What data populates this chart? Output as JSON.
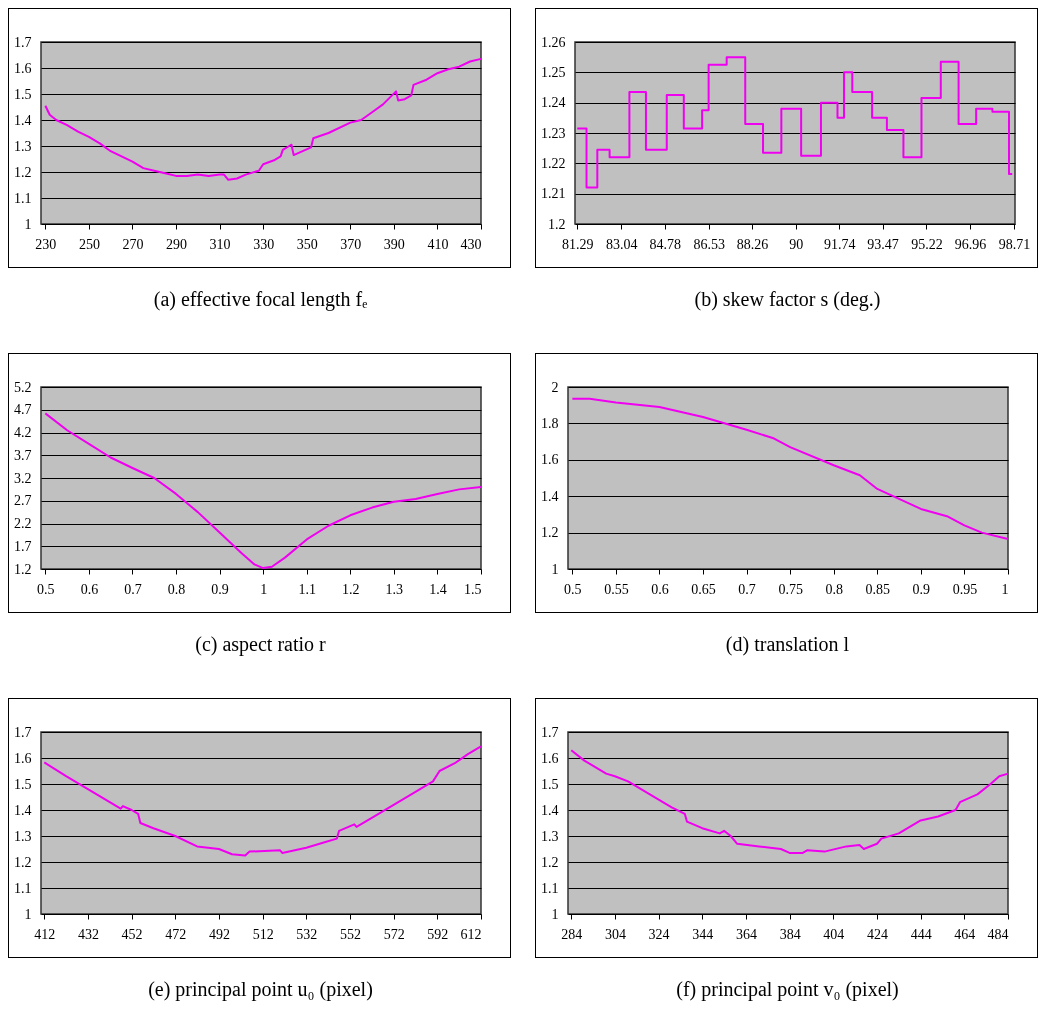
{
  "chart_data": [
    {
      "type": "line",
      "title": "(a)  effective focal length fₑ",
      "color": "#f000f0",
      "grid": "y",
      "xlim": [
        228,
        430
      ],
      "xticks": [
        230,
        250,
        270,
        290,
        310,
        330,
        350,
        370,
        390,
        410,
        430
      ],
      "ylim": [
        1,
        1.7
      ],
      "yticks": [
        1,
        1.1,
        1.2,
        1.3,
        1.4,
        1.5,
        1.6,
        1.7
      ],
      "x": [
        230,
        232,
        235,
        240,
        245,
        250,
        255,
        260,
        265,
        270,
        275,
        280,
        285,
        290,
        295,
        300,
        305,
        310,
        312,
        314,
        318,
        322,
        328,
        330,
        335,
        338,
        339,
        342,
        343,
        344,
        352,
        353,
        360,
        370,
        375,
        380,
        385,
        391,
        392,
        395,
        398,
        399,
        405,
        410,
        415,
        420,
        425,
        430
      ],
      "values": [
        1.455,
        1.42,
        1.4,
        1.38,
        1.355,
        1.335,
        1.31,
        1.28,
        1.26,
        1.24,
        1.215,
        1.205,
        1.195,
        1.185,
        1.185,
        1.19,
        1.185,
        1.19,
        1.19,
        1.17,
        1.175,
        1.19,
        1.205,
        1.23,
        1.245,
        1.26,
        1.285,
        1.3,
        1.305,
        1.265,
        1.295,
        1.33,
        1.35,
        1.39,
        1.4,
        1.43,
        1.46,
        1.51,
        1.475,
        1.48,
        1.495,
        1.535,
        1.555,
        1.58,
        1.595,
        1.605,
        1.625,
        1.635
      ]
    },
    {
      "type": "step",
      "title": "(b)  skew factor s (deg.)",
      "color": "#f000f0",
      "grid": "y",
      "xlim": [
        81.2,
        98.75
      ],
      "xticks": [
        81.29,
        83.04,
        84.78,
        86.53,
        88.26,
        90,
        91.74,
        93.47,
        95.22,
        96.96,
        98.71
      ],
      "ylim": [
        1.2,
        1.26
      ],
      "yticks": [
        1.2,
        1.21,
        1.22,
        1.23,
        1.24,
        1.25,
        1.26
      ],
      "x": [
        81.29,
        81.66,
        82.09,
        82.58,
        83.37,
        84.03,
        84.86,
        85.54,
        86.27,
        86.53,
        87.25,
        87.99,
        88.7,
        89.43,
        90.22,
        91.01,
        91.67,
        91.93,
        92.26,
        93.05,
        93.64,
        94.3,
        95.02,
        95.79,
        96.5,
        97.2,
        97.85,
        98.51,
        98.64
      ],
      "values": [
        1.2315,
        1.212,
        1.2245,
        1.222,
        1.2435,
        1.2245,
        1.2425,
        1.2315,
        1.2375,
        1.2525,
        1.255,
        1.233,
        1.2235,
        1.238,
        1.2225,
        1.24,
        1.235,
        1.25,
        1.2435,
        1.235,
        1.231,
        1.222,
        1.2415,
        1.2535,
        1.233,
        1.238,
        1.237,
        1.2165,
        1.2165
      ]
    },
    {
      "type": "line",
      "title": "(c)  aspect ratio r",
      "color": "#f000f0",
      "grid": "y",
      "xlim": [
        0.49,
        1.5
      ],
      "xticks": [
        0.5,
        0.6,
        0.7,
        0.8,
        0.9,
        1,
        1.1,
        1.2,
        1.3,
        1.4,
        1.5
      ],
      "ylim": [
        1.2,
        5.2
      ],
      "yticks": [
        1.2,
        1.7,
        2.2,
        2.7,
        3.2,
        3.7,
        4.2,
        4.7,
        5.2
      ],
      "x": [
        0.5,
        0.55,
        0.6,
        0.65,
        0.7,
        0.75,
        0.8,
        0.85,
        0.9,
        0.95,
        0.98,
        1.0,
        1.02,
        1.05,
        1.1,
        1.15,
        1.2,
        1.25,
        1.3,
        1.35,
        1.4,
        1.45,
        1.5
      ],
      "values": [
        4.62,
        4.25,
        3.95,
        3.65,
        3.42,
        3.2,
        2.85,
        2.45,
        2.0,
        1.55,
        1.3,
        1.22,
        1.25,
        1.45,
        1.85,
        2.15,
        2.38,
        2.55,
        2.68,
        2.74,
        2.85,
        2.95,
        3.0
      ]
    },
    {
      "type": "line",
      "title": "(d)  translation l",
      "color": "#f000f0",
      "grid": "y",
      "xlim": [
        0.495,
        1
      ],
      "xticks": [
        0.5,
        0.55,
        0.6,
        0.65,
        0.7,
        0.75,
        0.8,
        0.85,
        0.9,
        0.95,
        1
      ],
      "ylim": [
        1,
        2
      ],
      "yticks": [
        1,
        1.2,
        1.4,
        1.6,
        1.8,
        2
      ],
      "x": [
        0.5,
        0.52,
        0.55,
        0.6,
        0.65,
        0.7,
        0.73,
        0.75,
        0.8,
        0.83,
        0.85,
        0.9,
        0.93,
        0.95,
        0.97,
        1.0
      ],
      "values": [
        1.935,
        1.935,
        1.915,
        1.89,
        1.835,
        1.765,
        1.72,
        1.67,
        1.57,
        1.515,
        1.44,
        1.33,
        1.29,
        1.24,
        1.2,
        1.165
      ]
    },
    {
      "type": "line",
      "title": "(e)  principal point u₀ (pixel)",
      "color": "#f000f0",
      "grid": "y",
      "xlim": [
        410.5,
        612
      ],
      "xticks": [
        412,
        432,
        452,
        472,
        492,
        512,
        532,
        552,
        572,
        592,
        612
      ],
      "ylim": [
        1,
        1.7
      ],
      "yticks": [
        1,
        1.1,
        1.2,
        1.3,
        1.4,
        1.5,
        1.6,
        1.7
      ],
      "x": [
        412,
        422,
        432,
        442,
        447,
        448,
        452,
        455,
        456,
        462,
        472,
        482,
        492,
        498,
        504,
        506,
        520,
        521,
        532,
        540,
        546,
        547,
        554,
        555,
        562,
        572,
        582,
        590,
        593,
        600,
        606,
        612
      ],
      "values": [
        1.583,
        1.53,
        1.48,
        1.43,
        1.405,
        1.415,
        1.4,
        1.385,
        1.35,
        1.33,
        1.3,
        1.26,
        1.25,
        1.23,
        1.225,
        1.24,
        1.245,
        1.235,
        1.255,
        1.275,
        1.29,
        1.32,
        1.345,
        1.335,
        1.37,
        1.42,
        1.47,
        1.51,
        1.55,
        1.58,
        1.615,
        1.645
      ]
    },
    {
      "type": "line",
      "title": "(f)  principal point v₀ (pixel)",
      "color": "#f000f0",
      "grid": "y",
      "xlim": [
        282.5,
        484
      ],
      "xticks": [
        284,
        304,
        324,
        344,
        364,
        384,
        404,
        424,
        444,
        464,
        484
      ],
      "ylim": [
        1,
        1.7
      ],
      "yticks": [
        1,
        1.1,
        1.2,
        1.3,
        1.4,
        1.5,
        1.6,
        1.7
      ],
      "x": [
        284,
        290,
        300,
        304,
        310,
        320,
        330,
        336,
        337,
        344,
        352,
        354,
        357,
        360,
        370,
        380,
        384,
        390,
        392,
        400,
        410,
        416,
        418,
        424,
        426,
        434,
        444,
        452,
        460,
        462,
        470,
        476,
        480,
        484
      ],
      "values": [
        1.63,
        1.59,
        1.54,
        1.53,
        1.51,
        1.46,
        1.41,
        1.385,
        1.355,
        1.33,
        1.31,
        1.32,
        1.3,
        1.27,
        1.26,
        1.25,
        1.235,
        1.235,
        1.245,
        1.24,
        1.26,
        1.265,
        1.25,
        1.27,
        1.29,
        1.31,
        1.36,
        1.375,
        1.4,
        1.43,
        1.46,
        1.5,
        1.53,
        1.54
      ]
    }
  ]
}
